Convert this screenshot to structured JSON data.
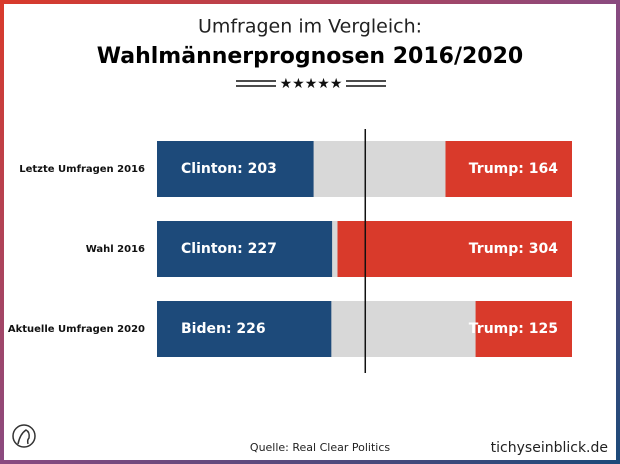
{
  "chart_data": {
    "type": "bar",
    "title": "Umfragen im Vergleich:",
    "subtitle": "Wahlmännerprognosen 2016/2020",
    "categories": [
      "Letzte Umfragen 2016",
      "Wahl 2016",
      "Aktuelle Umfragen 2020"
    ],
    "series": [
      {
        "color": "#1d4a7a",
        "values": [
          203,
          227,
          226
        ],
        "value_labels": [
          "Clinton: 203",
          "Clinton: 227",
          "Biden: 226"
        ]
      },
      {
        "color": "#d93a2b",
        "values": [
          164,
          304,
          125
        ],
        "value_labels": [
          "Trump: 164",
          "Trump: 304",
          "Trump: 125"
        ]
      }
    ],
    "xlim": [
      0,
      538
    ],
    "reference_line": 270,
    "background_color": "#d8d8d8",
    "source": "Quelle: Real Clear Politics",
    "brand": "tichyseinblick.de"
  }
}
